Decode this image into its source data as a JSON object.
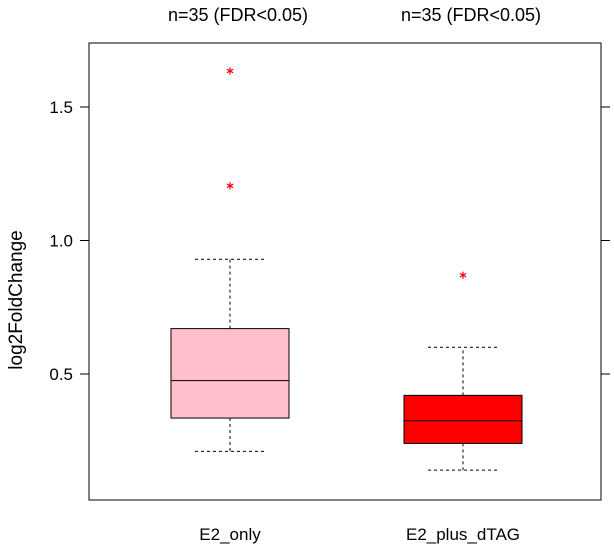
{
  "chart_data": {
    "type": "box",
    "title": "",
    "xlabel": "",
    "ylabel": "log2FoldChange",
    "ylim": [
      0.0,
      1.72
    ],
    "yticks": [
      0.5,
      1.0,
      1.5
    ],
    "ytick_labels": [
      "0.5",
      "1.0",
      "1.5"
    ],
    "grid": false,
    "categories": [
      "E2_only",
      "E2_plus_dTAG"
    ],
    "top_labels": [
      "n=35 (FDR<0.05)",
      "n=35 (FDR<0.05)"
    ],
    "boxes": [
      {
        "name": "E2_only",
        "whisker_low": 0.21,
        "q1": 0.335,
        "median": 0.475,
        "q3": 0.67,
        "whisker_high": 0.93,
        "outliers": [
          1.205,
          1.635
        ],
        "color": "#ffc0cb"
      },
      {
        "name": "E2_plus_dTAG",
        "whisker_low": 0.14,
        "q1": 0.24,
        "median": 0.325,
        "q3": 0.42,
        "whisker_high": 0.6,
        "outliers": [
          0.87
        ],
        "color": "#ff0000"
      }
    ],
    "outlier_color": "#ff0000"
  }
}
